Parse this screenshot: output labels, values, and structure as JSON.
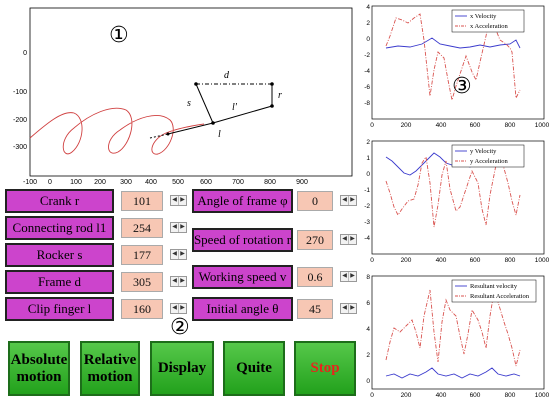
{
  "markers": {
    "figure": "①",
    "controls": "②",
    "plots": "③"
  },
  "linkage": {
    "labels": {
      "d": "d",
      "r": "r",
      "s": "s",
      "lp": "l′",
      "l": "l"
    },
    "x_ticks": [
      "-100",
      "0",
      "100",
      "200",
      "300",
      "400",
      "500",
      "600",
      "700",
      "800",
      "900"
    ],
    "y_ticks": [
      "0",
      "-100",
      "-200",
      "-300"
    ]
  },
  "plots": [
    {
      "legend": [
        "x Velocity",
        "x Acceleration"
      ],
      "y_ticks": [
        "4",
        "2",
        "0",
        "-2",
        "-4",
        "-6",
        "-8"
      ],
      "x_ticks": [
        "0",
        "200",
        "400",
        "600",
        "800",
        "1000"
      ]
    },
    {
      "legend": [
        "y Velocity",
        "y Acceleration"
      ],
      "y_ticks": [
        "2",
        "1",
        "0",
        "-1",
        "-2",
        "-3",
        "-4"
      ],
      "x_ticks": [
        "0",
        "200",
        "400",
        "600",
        "800",
        "1000"
      ]
    },
    {
      "legend": [
        "Resultant velocity",
        "Resultant Acceleration"
      ],
      "y_ticks": [
        "8",
        "6",
        "4",
        "2",
        "0"
      ],
      "x_ticks": [
        "0",
        "200",
        "400",
        "600",
        "800",
        "1000"
      ]
    }
  ],
  "params_left": [
    {
      "label": "Crank r",
      "value": "101"
    },
    {
      "label": "Connecting rod l1",
      "value": "254"
    },
    {
      "label": "Rocker s",
      "value": "177"
    },
    {
      "label": "Frame d",
      "value": "305"
    },
    {
      "label": "Clip finger l",
      "value": "160"
    }
  ],
  "params_right": [
    {
      "label": "Angle of frame φ",
      "value": "0"
    },
    {
      "label": "Speed of rotation r",
      "value": "270"
    },
    {
      "label": "Working  speed v",
      "value": "0.6"
    },
    {
      "label": "Initial angle θ",
      "value": "45"
    }
  ],
  "buttons": {
    "absolute": "Absolute motion",
    "relative": "Relative motion",
    "display": "Display",
    "quite": "Quite",
    "stop": "Stop"
  },
  "colors": {
    "label_bg": "#cc44cc",
    "value_bg": "#f7c7b4",
    "button_green": "#2aa322",
    "stop_text": "#e8241c",
    "velocity_line": "#3a3acd",
    "accel_line": "#d9534f",
    "trajectory": "#d04040"
  }
}
